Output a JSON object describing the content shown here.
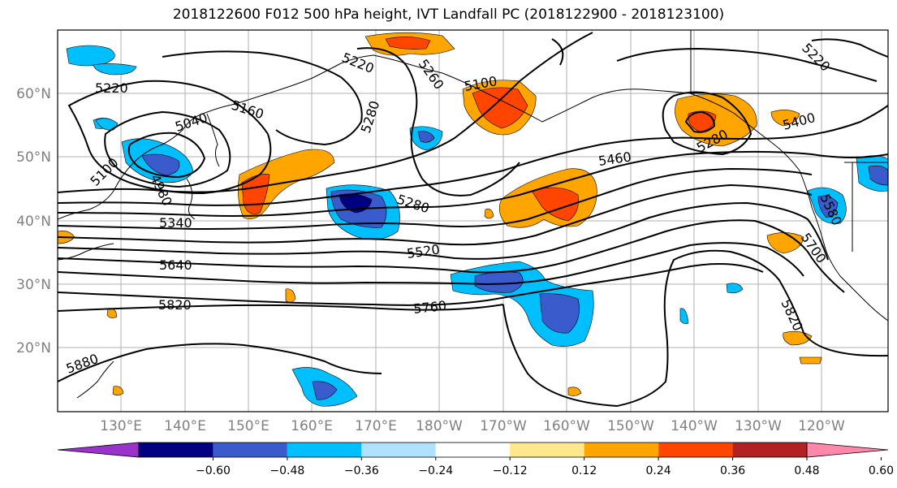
{
  "title": "2018122600 F012 500 hPa height, IVT Landfall PC (2018122900 - 2018123100)",
  "lat_labels": [
    "60°N",
    "50°N",
    "40°N",
    "30°N",
    "20°N"
  ],
  "lon_labels": [
    "130°E",
    "140°E",
    "150°E",
    "160°E",
    "170°E",
    "180°W",
    "170°W",
    "160°W",
    "150°W",
    "140°W",
    "130°W",
    "120°W"
  ],
  "contour_labels": [
    "5220",
    "5220",
    "5160",
    "5040",
    "5100",
    "4980",
    "5280",
    "5260",
    "5100",
    "5220",
    "5280",
    "5400",
    "5460",
    "5280",
    "5340",
    "5520",
    "5640",
    "5580",
    "5700",
    "5760",
    "5820",
    "5820",
    "5880"
  ],
  "colorbar": {
    "colors": [
      "#9933cc",
      "#000080",
      "#3a5bcc",
      "#00bfff",
      "#b0e2ff",
      "#ffffff",
      "#ffe88c",
      "#ffa500",
      "#ff4500",
      "#b22222",
      "#ff88aa"
    ],
    "tick_labels": [
      "−0.60",
      "−0.48",
      "−0.36",
      "−0.24",
      "−0.12",
      "0.12",
      "0.24",
      "0.36",
      "0.48",
      "0.60"
    ]
  }
}
